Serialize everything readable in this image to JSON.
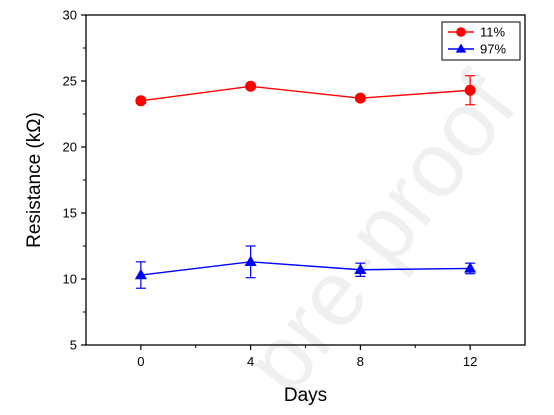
{
  "watermark": "pre-proof",
  "chart_data": {
    "type": "line",
    "xlabel": "Days",
    "ylabel": "Resistance (kΩ)",
    "xlim": [
      -2,
      14
    ],
    "ylim": [
      5,
      30
    ],
    "xticks": [
      0,
      4,
      8,
      12
    ],
    "yticks": [
      5,
      10,
      15,
      20,
      25,
      30
    ],
    "legend_position": "top-right",
    "grid": false,
    "series": [
      {
        "name": "11%",
        "color": "#ff0000",
        "marker": "circle",
        "x": [
          0,
          4,
          8,
          12
        ],
        "y": [
          23.5,
          24.6,
          23.7,
          24.3
        ],
        "err": [
          0.2,
          0.2,
          0.2,
          1.1
        ]
      },
      {
        "name": "97%",
        "color": "#0000ff",
        "marker": "triangle",
        "x": [
          0,
          4,
          8,
          12
        ],
        "y": [
          10.3,
          11.3,
          10.7,
          10.8
        ],
        "err": [
          1.0,
          1.2,
          0.5,
          0.4
        ]
      }
    ]
  }
}
